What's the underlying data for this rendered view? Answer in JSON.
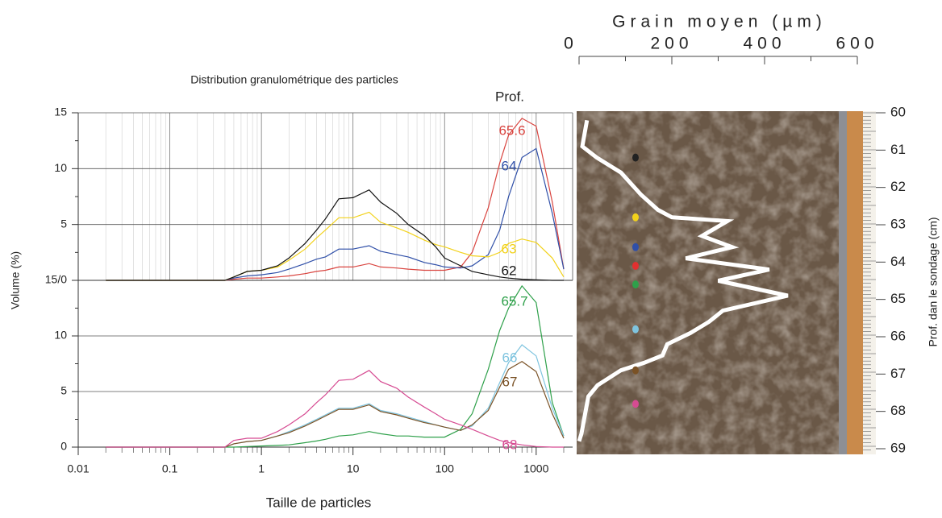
{
  "chart_data": [
    {
      "type": "line",
      "title": "Distribution granulométrique des particles",
      "legend_title": "Prof.",
      "ylabel": "Volume (%)",
      "xlog": true,
      "xlim": [
        0.01,
        2500
      ],
      "ylim": [
        0,
        15
      ],
      "yticks": [
        {
          "value": 0,
          "label": "15/0"
        },
        5,
        10,
        15
      ],
      "grid": "xy",
      "minor_grid": true,
      "x": [
        0.02,
        0.4,
        0.5,
        0.7,
        1,
        1.5,
        2,
        3,
        4,
        5,
        7,
        10,
        15,
        20,
        30,
        40,
        60,
        80,
        100,
        150,
        200,
        300,
        400,
        500,
        700,
        1000,
        1500,
        2000
      ],
      "series": [
        {
          "name": "65.6",
          "color": "#d9443f",
          "values": [
            0,
            0,
            0.1,
            0.2,
            0.2,
            0.3,
            0.4,
            0.6,
            0.8,
            0.9,
            1.2,
            1.2,
            1.5,
            1.2,
            1.1,
            1,
            0.9,
            0.9,
            0.9,
            1.2,
            2.5,
            6.5,
            10.5,
            13,
            14.5,
            13.8,
            7,
            1
          ]
        },
        {
          "name": "64",
          "color": "#2f4fa8",
          "values": [
            0,
            0,
            0.2,
            0.4,
            0.5,
            0.7,
            1,
            1.5,
            1.9,
            2.1,
            2.8,
            2.8,
            3.1,
            2.6,
            2.3,
            2.1,
            1.6,
            1.4,
            1.2,
            1.1,
            1.3,
            2.3,
            4.5,
            7.5,
            11,
            11.8,
            6,
            1
          ]
        },
        {
          "name": "63",
          "color": "#f2d21b",
          "values": [
            0,
            0,
            0.3,
            0.8,
            0.9,
            1.2,
            1.8,
            2.8,
            3.8,
            4.5,
            5.6,
            5.6,
            6.1,
            5.2,
            4.7,
            4.3,
            3.6,
            3.2,
            3,
            2.5,
            2.2,
            2.1,
            2.5,
            3.3,
            3.7,
            3.4,
            2,
            0.3
          ]
        },
        {
          "name": "62",
          "color": "#111111",
          "values": [
            0,
            0,
            0.3,
            0.8,
            0.9,
            1.3,
            2,
            3.3,
            4.5,
            5.5,
            7.3,
            7.4,
            8.1,
            7,
            6,
            5,
            4,
            3,
            2,
            1.3,
            0.8,
            0.5,
            0.3,
            0.2,
            0.1,
            0.05,
            0,
            0
          ]
        }
      ]
    },
    {
      "type": "line",
      "xlabel": "Taille de particles",
      "xlog": true,
      "xlim": [
        0.01,
        2500
      ],
      "ylim": [
        0,
        15
      ],
      "xticks": [
        0.01,
        0.1,
        1,
        10,
        100,
        1000
      ],
      "yticks": [
        0,
        5,
        10
      ],
      "grid": "y",
      "minor_grid": false,
      "x": [
        0.02,
        0.4,
        0.5,
        0.7,
        1,
        1.5,
        2,
        3,
        4,
        5,
        7,
        10,
        15,
        20,
        30,
        40,
        60,
        80,
        100,
        150,
        200,
        300,
        400,
        500,
        700,
        1000,
        1500,
        2000
      ],
      "series": [
        {
          "name": "65.7",
          "color": "#2ea04a",
          "values": [
            0,
            0,
            0,
            0.05,
            0.1,
            0.15,
            0.2,
            0.4,
            0.55,
            0.7,
            1,
            1.1,
            1.4,
            1.2,
            1,
            1,
            0.9,
            0.9,
            0.9,
            1.6,
            3,
            7,
            10.5,
            12.5,
            14.5,
            13,
            4,
            1
          ]
        },
        {
          "name": "66",
          "color": "#7fc4df",
          "values": [
            0,
            0,
            0.3,
            0.5,
            0.6,
            1,
            1.4,
            2,
            2.5,
            2.9,
            3.5,
            3.5,
            3.9,
            3.3,
            3,
            2.7,
            2.3,
            2,
            1.8,
            1.5,
            1.9,
            3.5,
            5.8,
            7.6,
            9.2,
            8.2,
            3.5,
            1
          ]
        },
        {
          "name": "67",
          "color": "#7a5226",
          "values": [
            0,
            0,
            0.3,
            0.5,
            0.6,
            1,
            1.3,
            1.9,
            2.4,
            2.8,
            3.4,
            3.4,
            3.8,
            3.2,
            2.9,
            2.6,
            2.2,
            2,
            1.8,
            1.5,
            2,
            3.3,
            5.4,
            7,
            7.7,
            6.8,
            3,
            0.8
          ]
        },
        {
          "name": "68",
          "color": "#d64b92",
          "values": [
            0,
            0,
            0.6,
            0.8,
            0.8,
            1.4,
            2,
            3,
            4,
            4.7,
            6,
            6.1,
            6.9,
            5.9,
            5.3,
            4.5,
            3.6,
            3,
            2.5,
            2,
            1.6,
            1,
            0.6,
            0.4,
            0.2,
            0.05,
            0,
            0
          ]
        }
      ]
    },
    {
      "type": "profile",
      "title": "Grain moyen (µm)",
      "ylabel": "Prof. dan le sondage (cm)",
      "xlim": [
        0,
        600
      ],
      "xticks": [
        0,
        200,
        400,
        600
      ],
      "ylim": [
        60,
        69
      ],
      "yticks": [
        60,
        61,
        62,
        63,
        64,
        65,
        66,
        67,
        68,
        69
      ],
      "y_inverted": true,
      "series": [
        {
          "color": "#ffffff",
          "x": [
            17,
            7,
            38,
            90,
            134,
            170,
            200,
            320,
            265,
            330,
            230,
            410,
            300,
            450,
            310,
            280,
            240,
            190,
            180,
            140,
            90,
            40,
            20,
            5,
            0
          ],
          "values": [
            60.2,
            60.9,
            61.2,
            61.6,
            62.2,
            62.6,
            62.8,
            62.9,
            63.3,
            63.6,
            63.9,
            64.2,
            64.5,
            64.9,
            65.3,
            65.6,
            65.9,
            66.2,
            66.5,
            66.7,
            66.9,
            67.3,
            67.6,
            68.6,
            68.8
          ]
        }
      ],
      "samples": {
        "values": [
          61.2,
          62.8,
          63.6,
          64.1,
          64.6,
          65.8,
          66.9,
          67.8
        ],
        "colors": [
          "#222222",
          "#f2d21b",
          "#2f4fa8",
          "#e23030",
          "#2ea04a",
          "#7fc4df",
          "#7a5226",
          "#d64b92"
        ]
      }
    }
  ]
}
